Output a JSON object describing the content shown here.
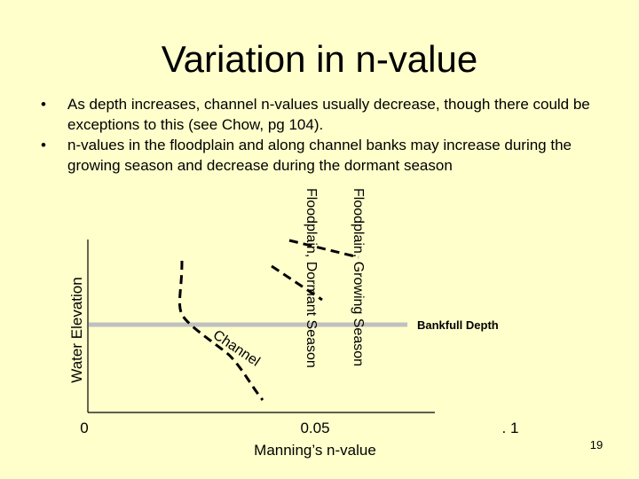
{
  "slide": {
    "title": "Variation in n-value",
    "bullets": [
      "As depth increases, channel n-values usually decrease, though there could be exceptions to this (see Chow, pg 104).",
      "n-values in the floodplain and along channel banks may increase during the growing season and decrease during the dormant season"
    ],
    "bullet_glyph": "•",
    "page_number": "19"
  },
  "diagram": {
    "y_axis_label": "Water Elevation",
    "x_axis_label": "Manning’s n-value",
    "x_ticks": [
      "0",
      "0.05",
      ". 1"
    ],
    "bankfull_label": "Bankfull Depth",
    "curve_labels": {
      "channel": "Channel",
      "floodplain_dormant": "Floodplain, Dormant Season",
      "floodplain_growing": "Floodplain, Growing Season"
    },
    "colors": {
      "background": "#ffffcc",
      "bankfull_line": "#c0c0c0",
      "axis": "#000000",
      "curves": "#000000"
    }
  }
}
